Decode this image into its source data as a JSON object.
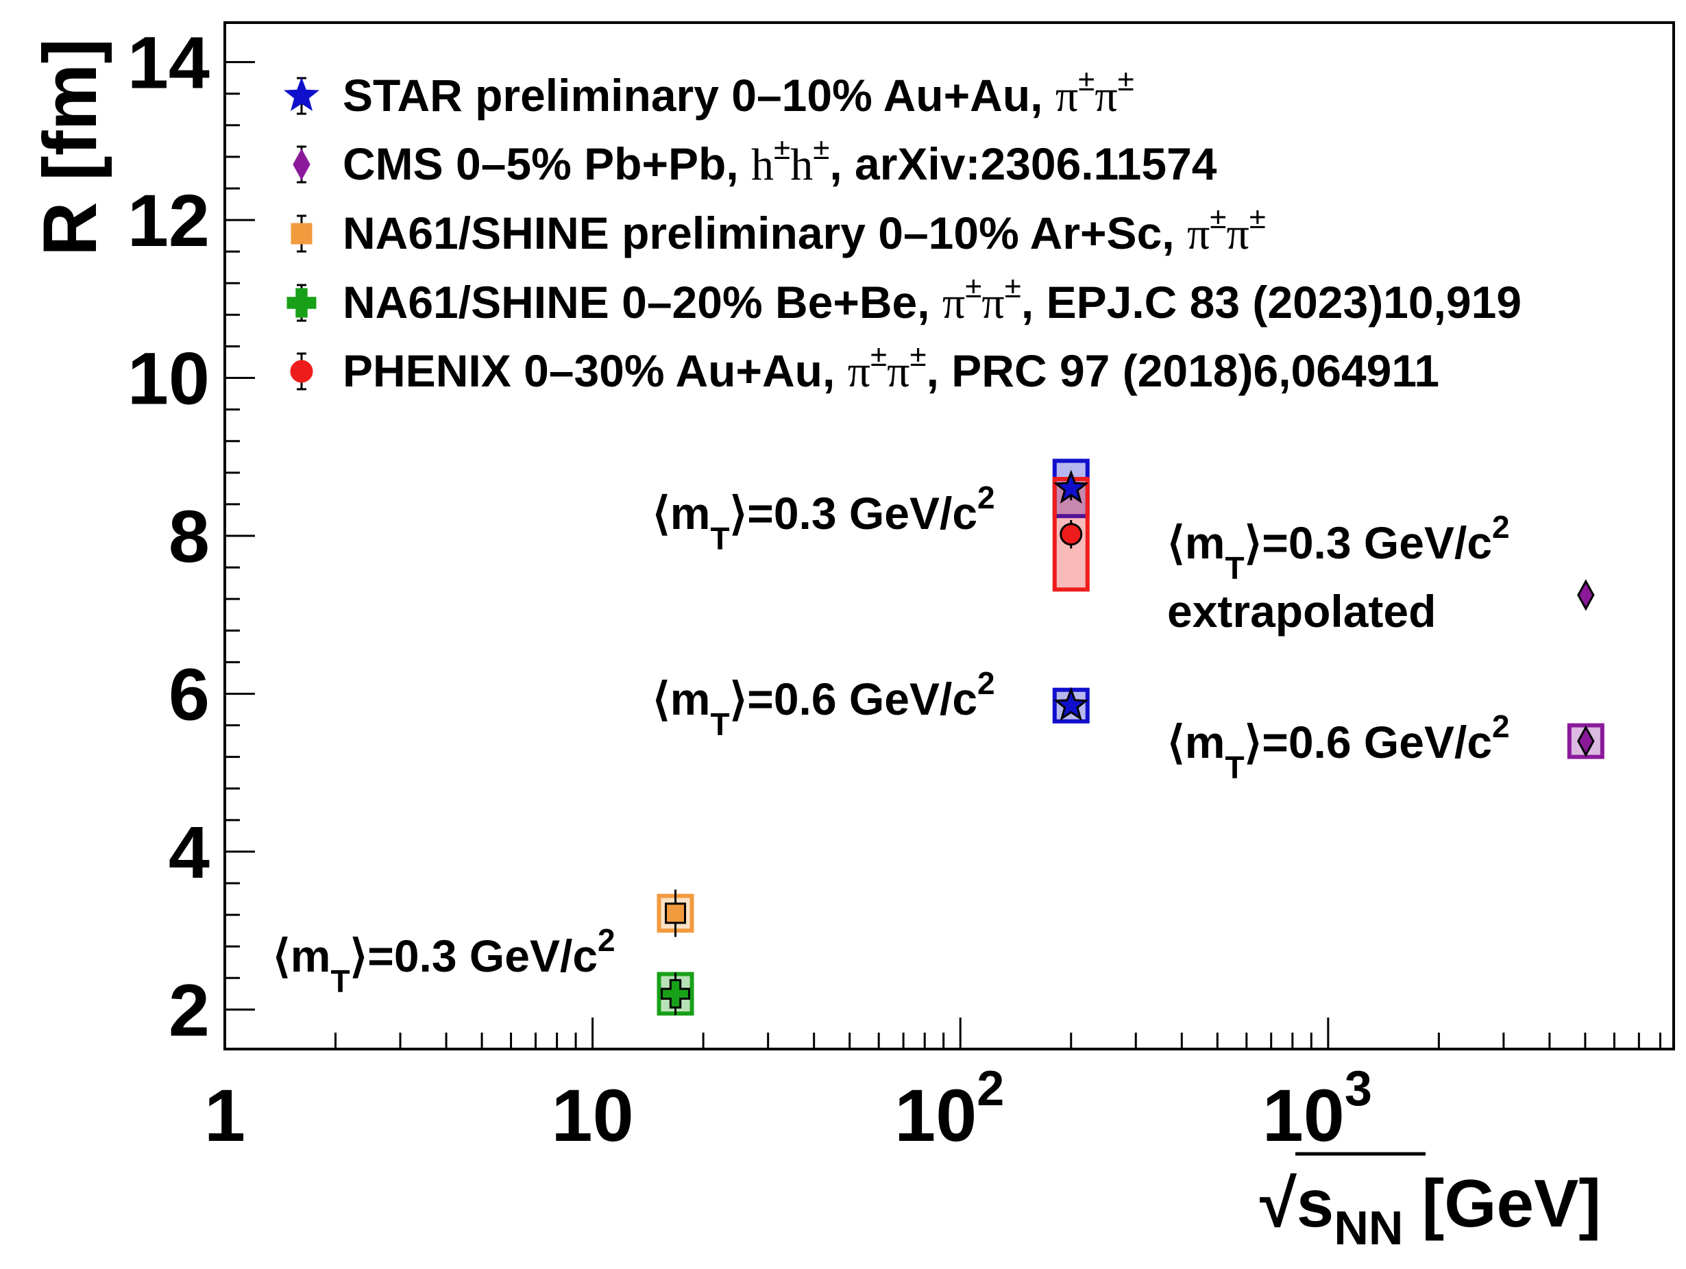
{
  "chart_data": {
    "type": "scatter",
    "x_scale": "log",
    "xlim": [
      1,
      8700
    ],
    "ylim": [
      1.5,
      14.5
    ],
    "grid": false,
    "legend_placement": "top-left",
    "ylabel": "R [fm]",
    "xlabel": {
      "sqrt_sign": "√",
      "s": "s",
      "sub": "NN",
      "unit": " [GeV]"
    },
    "y_ticks": [
      {
        "value": 2,
        "label": "2"
      },
      {
        "value": 4,
        "label": "4"
      },
      {
        "value": 6,
        "label": "6"
      },
      {
        "value": 8,
        "label": "8"
      },
      {
        "value": 10,
        "label": "10"
      },
      {
        "value": 12,
        "label": "12"
      },
      {
        "value": 14,
        "label": "14"
      }
    ],
    "x_ticks": [
      {
        "value": 1,
        "label": "1",
        "exp": ""
      },
      {
        "value": 10,
        "label": "10",
        "exp": ""
      },
      {
        "value": 100,
        "label": "10",
        "exp": "2"
      },
      {
        "value": 1000,
        "label": "10",
        "exp": "3"
      }
    ],
    "series": [
      {
        "key": "star",
        "marker": "star",
        "color": "#1010cc",
        "legend": {
          "text": "STAR preliminary 0–10% Au+Au, ",
          "pi": "π",
          "pm": "±"
        },
        "points": [
          {
            "x": 200,
            "y": 8.6,
            "err": 0.15,
            "sys": 0.35
          },
          {
            "x": 200,
            "y": 5.85,
            "err": 0.1,
            "sys": 0.2
          }
        ]
      },
      {
        "key": "cms",
        "marker": "diamond",
        "color": "#8b1a9b",
        "legend": {
          "text": "CMS 0–5% Pb+Pb, ",
          "h": "h",
          "pm": "±",
          "tail": ", arXiv:2306.11574"
        },
        "points": [
          {
            "x": 5020,
            "y": 7.25,
            "err": 0.1,
            "sys": 0
          },
          {
            "x": 5020,
            "y": 5.4,
            "err": 0.1,
            "sys": 0.2
          }
        ]
      },
      {
        "key": "na61arsc",
        "marker": "square",
        "color": "#f29a3e",
        "legend": {
          "text": "NA61/SHINE preliminary 0–10% Ar+Sc, ",
          "pi": "π",
          "pm": "±"
        },
        "points": [
          {
            "x": 16.8,
            "y": 3.22,
            "err": 0.3,
            "sys": 0.22
          }
        ]
      },
      {
        "key": "na61bebe",
        "marker": "cross",
        "color": "#18a018",
        "legend": {
          "text": "NA61/SHINE 0–20% Be+Be, ",
          "pi": "π",
          "pm": "±",
          "tail": ", EPJ.C 83 (2023)10,919"
        },
        "points": [
          {
            "x": 16.8,
            "y": 2.2,
            "err": 0.27,
            "sys": 0.25
          }
        ]
      },
      {
        "key": "phenix",
        "marker": "circle",
        "color": "#ee1c1c",
        "legend": {
          "text": "PHENIX 0–30% Au+Au, ",
          "pi": "π",
          "pm": "±",
          "tail": ", PRC 97 (2018)6,064911"
        },
        "points": [
          {
            "x": 200,
            "y": 8.02,
            "err": 0.18,
            "sys": 0.7
          }
        ]
      }
    ],
    "annotations": [
      {
        "key": "a1",
        "prefix": "⟨m",
        "sub": "T",
        "suffix": "⟩=0.3 GeV/c",
        "sup": "2"
      },
      {
        "key": "a2",
        "prefix": "⟨m",
        "sub": "T",
        "suffix": "⟩=0.6 GeV/c",
        "sup": "2"
      },
      {
        "key": "a3",
        "prefix": "⟨m",
        "sub": "T",
        "suffix": "⟩=0.3 GeV/c",
        "sup": "2",
        "line2": "extrapolated"
      },
      {
        "key": "a4",
        "prefix": "⟨m",
        "sub": "T",
        "suffix": "⟩=0.6 GeV/c",
        "sup": "2"
      },
      {
        "key": "a5",
        "prefix": "⟨m",
        "sub": "T",
        "suffix": "⟩=0.3 GeV/c",
        "sup": "2"
      }
    ]
  }
}
